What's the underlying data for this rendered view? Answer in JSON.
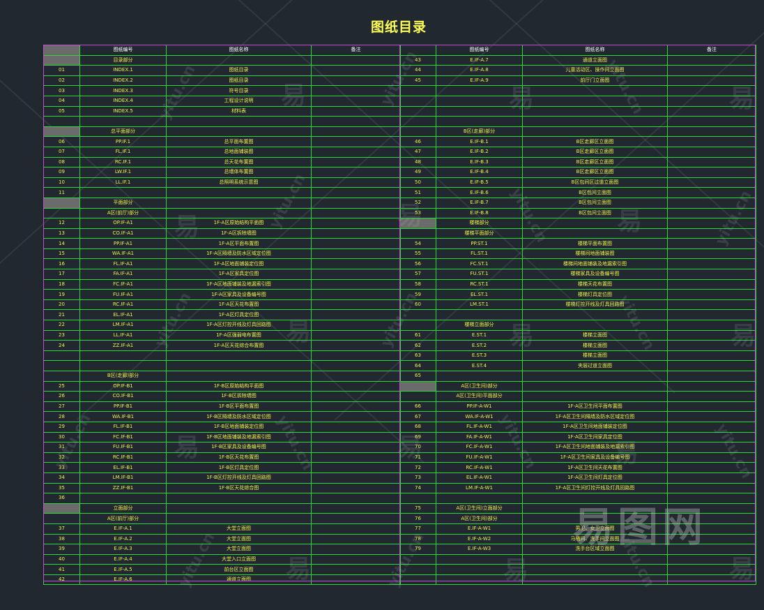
{
  "title": "图纸目录",
  "headers": {
    "no": "",
    "code": "图纸编号",
    "name": "图纸名称",
    "note": "备注"
  },
  "left_rows": [
    {
      "no": "",
      "code": "目录部分",
      "name": "",
      "shade": true
    },
    {
      "no": "01",
      "code": "INDEX.1",
      "name": "图纸目录"
    },
    {
      "no": "02",
      "code": "INDEX.2",
      "name": "图纸目录"
    },
    {
      "no": "03",
      "code": "INDEX.3",
      "name": "符号目录"
    },
    {
      "no": "04",
      "code": "INDEX.4",
      "name": "工程设计说明"
    },
    {
      "no": "05",
      "code": "INDEX.5",
      "name": "材料表"
    },
    {
      "no": "",
      "code": "",
      "name": ""
    },
    {
      "no": "",
      "code": "总平面部分",
      "name": "",
      "shade": true
    },
    {
      "no": "06",
      "code": "PP.IF.1",
      "name": "总平面布置图"
    },
    {
      "no": "07",
      "code": "FL.IF.1",
      "name": "总地面铺装图"
    },
    {
      "no": "08",
      "code": "RC.IF.1",
      "name": "总天花布置图"
    },
    {
      "no": "09",
      "code": "LW.IF.1",
      "name": "总墙体布置图"
    },
    {
      "no": "10",
      "code": "LL.IF.1",
      "name": "总照明系统示意图"
    },
    {
      "no": "11",
      "code": "",
      "name": ""
    },
    {
      "no": "",
      "code": "平面部分",
      "name": "",
      "shade": true
    },
    {
      "no": "",
      "code": "A区(前厅)部分",
      "name": ""
    },
    {
      "no": "12",
      "code": "OP.IF-A1",
      "name": "1F-A区原始结构平面图"
    },
    {
      "no": "13",
      "code": "CO.IF-A1",
      "name": "1F-A区拆除墙图"
    },
    {
      "no": "14",
      "code": "PP.IF-A1",
      "name": "1F-A区平面布置图"
    },
    {
      "no": "15",
      "code": "WA.IF-A1",
      "name": "1F-A区隔墙及防水区域定位图"
    },
    {
      "no": "16",
      "code": "FL.IF-A1",
      "name": "1F-A区地面铺装定位图"
    },
    {
      "no": "17",
      "code": "FA.IF-A1",
      "name": "1F-A区家具定位图"
    },
    {
      "no": "18",
      "code": "FC.IF-A1",
      "name": "1F-A区地面铺装及地漏索引图"
    },
    {
      "no": "19",
      "code": "FU.IF-A1",
      "name": "1F-A区家具及设备编号图"
    },
    {
      "no": "20",
      "code": "RC.IF-A1",
      "name": "1F-A区天花布置图"
    },
    {
      "no": "21",
      "code": "EL.IF-A1",
      "name": "1F-A区灯具定位图"
    },
    {
      "no": "22",
      "code": "LM.IF-A1",
      "name": "1F-A区灯控开线及灯具回路图"
    },
    {
      "no": "23",
      "code": "LL.IF-A1",
      "name": "1F-A区强弱电布置图"
    },
    {
      "no": "24",
      "code": "ZZ.IF-A1",
      "name": "1F-A区天花综合布置图"
    },
    {
      "no": "",
      "code": "",
      "name": ""
    },
    {
      "no": "",
      "code": "",
      "name": ""
    },
    {
      "no": "",
      "code": "B区(走廊)部分",
      "name": ""
    },
    {
      "no": "25",
      "code": "OP.IF-B1",
      "name": "1F-B区原始结构平面图"
    },
    {
      "no": "26",
      "code": "CO.IF-B1",
      "name": "1F-B区拆除墙图"
    },
    {
      "no": "27",
      "code": "PP.IF-B1",
      "name": "1F-B区平面布置图"
    },
    {
      "no": "28",
      "code": "WA.IF-B1",
      "name": "1F-B区隔墙及防水区域定位图"
    },
    {
      "no": "29",
      "code": "FL.IF-B1",
      "name": "1F-B区地面铺装定位图"
    },
    {
      "no": "30",
      "code": "FC.IF-B1",
      "name": "1F-B区地面铺装及地漏索引图"
    },
    {
      "no": "31",
      "code": "FU.IF-B1",
      "name": "1F-B区家具及设备编号图"
    },
    {
      "no": "32",
      "code": "RC.IF-B1",
      "name": "1F-B区天花布置图"
    },
    {
      "no": "33",
      "code": "EL.IF-B1",
      "name": "1F-B区灯具定位图"
    },
    {
      "no": "34",
      "code": "LM.IF-B1",
      "name": "1F-B区灯控开线及灯具回路图"
    },
    {
      "no": "35",
      "code": "ZZ.IF-B1",
      "name": "1F-B区天花综合图"
    },
    {
      "no": "36",
      "code": "",
      "name": ""
    },
    {
      "no": "",
      "code": "立面部分",
      "name": "",
      "shade": true
    },
    {
      "no": "",
      "code": "A区(前厅)部分",
      "name": ""
    },
    {
      "no": "37",
      "code": "E.IF-A.1",
      "name": "大堂立面图"
    },
    {
      "no": "38",
      "code": "E.IF-A.2",
      "name": "大堂立面图"
    },
    {
      "no": "39",
      "code": "E.IF-A.3",
      "name": "大堂立面图"
    },
    {
      "no": "40",
      "code": "E.IF-A.4",
      "name": "大堂入口立面图"
    },
    {
      "no": "41",
      "code": "E.IF-A.5",
      "name": "前台区立面图"
    },
    {
      "no": "42",
      "code": "E.IF-A.6",
      "name": "通道立面图"
    }
  ],
  "right_rows": [
    {
      "no": "43",
      "code": "E.IF-A.7",
      "name": "通道立面图"
    },
    {
      "no": "44",
      "code": "E.IF-A.8",
      "name": "儿童活动区、操作间立面图"
    },
    {
      "no": "45",
      "code": "E.IF-A.9",
      "name": "前厅门立面图"
    },
    {
      "no": "",
      "code": "",
      "name": ""
    },
    {
      "no": "",
      "code": "",
      "name": ""
    },
    {
      "no": "",
      "code": "",
      "name": ""
    },
    {
      "no": "",
      "code": "",
      "name": ""
    },
    {
      "no": "",
      "code": "B区(走廊)部分",
      "name": ""
    },
    {
      "no": "46",
      "code": "E.IF-B.1",
      "name": "B区走廊区立面图"
    },
    {
      "no": "47",
      "code": "E.IF-B.2",
      "name": "B区走廊区立面图"
    },
    {
      "no": "48",
      "code": "E.IF-B.3",
      "name": "B区走廊区立面图"
    },
    {
      "no": "49",
      "code": "E.IF-B.4",
      "name": "B区走廊区立面图"
    },
    {
      "no": "50",
      "code": "E.IF-B.5",
      "name": "B区包间区过道立面图"
    },
    {
      "no": "51",
      "code": "E.IF-B.6",
      "name": "B区包间立面图"
    },
    {
      "no": "52",
      "code": "E.IF-B.7",
      "name": "B区包间立面图"
    },
    {
      "no": "53",
      "code": "E.IF-B.8",
      "name": "B区包间立面图"
    },
    {
      "no": "",
      "code": "楼梯部分",
      "name": "",
      "shade": true
    },
    {
      "no": "",
      "code": "楼梯平面部分",
      "name": ""
    },
    {
      "no": "54",
      "code": "PP.ST.1",
      "name": "楼梯平面布置图"
    },
    {
      "no": "55",
      "code": "FL.ST.1",
      "name": "楼梯间地面铺装图"
    },
    {
      "no": "56",
      "code": "FC.ST.1",
      "name": "楼梯间地面铺装及地漏索引图"
    },
    {
      "no": "57",
      "code": "FU.ST.1",
      "name": "楼梯家具及设备编号图"
    },
    {
      "no": "58",
      "code": "RC.ST.1",
      "name": "楼梯天花布置图"
    },
    {
      "no": "59",
      "code": "EL.ST.1",
      "name": "楼梯灯具定位图"
    },
    {
      "no": "60",
      "code": "LM.ST.1",
      "name": "楼梯灯控开线及灯具回路图"
    },
    {
      "no": "",
      "code": "",
      "name": ""
    },
    {
      "no": "",
      "code": "楼梯立面部分",
      "name": ""
    },
    {
      "no": "61",
      "code": "E.ST.1",
      "name": "楼梯立面图"
    },
    {
      "no": "62",
      "code": "E.ST.2",
      "name": "楼梯立面图"
    },
    {
      "no": "63",
      "code": "E.ST.3",
      "name": "楼梯立面图"
    },
    {
      "no": "64",
      "code": "E.ST.4",
      "name": "夹层过道立面图"
    },
    {
      "no": "65",
      "code": "",
      "name": ""
    },
    {
      "no": "",
      "code": "A区(卫生间)部分",
      "name": "",
      "shade": true
    },
    {
      "no": "",
      "code": "A区(卫生间)平面部分",
      "name": ""
    },
    {
      "no": "66",
      "code": "PP.IF-A-W1",
      "name": "1F-A区卫生间平面布置图"
    },
    {
      "no": "67",
      "code": "WA.IF-A-W1",
      "name": "1F-A区卫生间隔墙及防水区域定位图"
    },
    {
      "no": "68",
      "code": "FL.IF-A-W1",
      "name": "1F-A区卫生间地面铺装定位图"
    },
    {
      "no": "69",
      "code": "FA.IF-A-W1",
      "name": "1F-A区卫生间家具定位图"
    },
    {
      "no": "70",
      "code": "FC.IF-A-W1",
      "name": "1F-A区卫生间地面铺装及地漏索引图"
    },
    {
      "no": "71",
      "code": "FU.IF-A-W1",
      "name": "1F-A区卫生间家具及设备编号图"
    },
    {
      "no": "72",
      "code": "RC.IF-A-W1",
      "name": "1F-A区卫生间天花布置图"
    },
    {
      "no": "73",
      "code": "EL.IF-A-W1",
      "name": "1F-A区卫生间灯具定位图"
    },
    {
      "no": "74",
      "code": "LM.IF-A-W1",
      "name": "1F-A区卫生间灯控开线及灯具回路图"
    },
    {
      "no": "",
      "code": "",
      "name": ""
    },
    {
      "no": "75",
      "code": "A区(卫生间)立面部分",
      "name": ""
    },
    {
      "no": "76",
      "code": "A区(卫生间)部分",
      "name": ""
    },
    {
      "no": "77",
      "code": "E.IF-A-W1",
      "name": "男卫、女卫立面图"
    },
    {
      "no": "78",
      "code": "E.IF-A-W2",
      "name": "马桶间、洗手间立面图"
    },
    {
      "no": "79",
      "code": "E.IF-A-W3",
      "name": "洗手台区域立面图"
    },
    {
      "no": "",
      "code": "",
      "name": ""
    },
    {
      "no": "",
      "code": "",
      "name": ""
    },
    {
      "no": "",
      "code": "",
      "name": ""
    }
  ],
  "watermark": {
    "mark": "易",
    "site": "yitu.cn",
    "logo": "易图网"
  }
}
